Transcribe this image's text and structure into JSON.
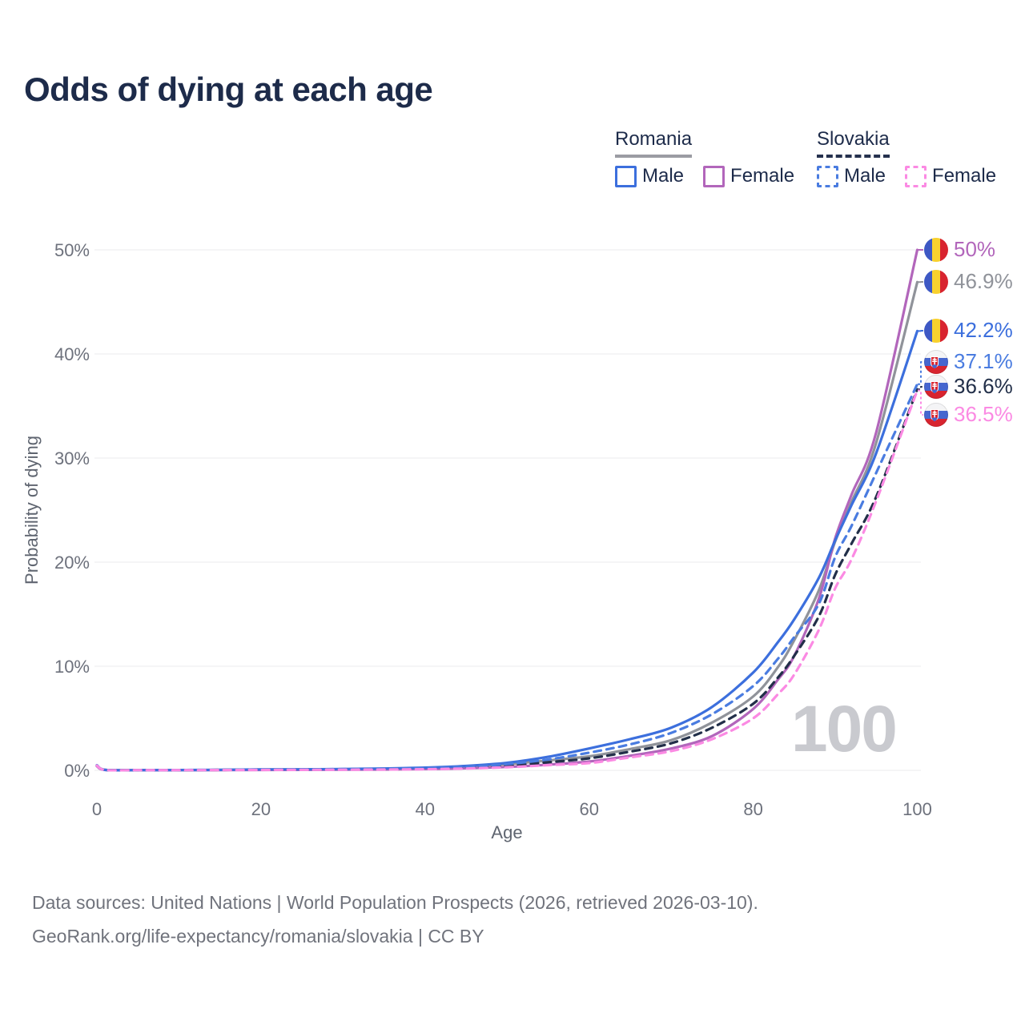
{
  "header": {
    "title": "Odds of dying at each age"
  },
  "legend": {
    "groups": [
      {
        "country": "Romania",
        "line_style": "solid",
        "underline_color": "#9b9ca3",
        "items": [
          {
            "label": "Male",
            "color": "#3c6fdd",
            "dashed": false
          },
          {
            "label": "Female",
            "color": "#b266bb",
            "dashed": false
          }
        ]
      },
      {
        "country": "Slovakia",
        "line_style": "dashed",
        "underline_color": "#25314e",
        "items": [
          {
            "label": "Male",
            "color": "#4a7ce0",
            "dashed": true
          },
          {
            "label": "Female",
            "color": "#fb8ae3",
            "dashed": true
          }
        ]
      }
    ]
  },
  "axes": {
    "y": {
      "title": "Probability of dying",
      "ticks": [
        "0%",
        "10%",
        "20%",
        "30%",
        "40%",
        "50%"
      ],
      "tick_values": [
        0,
        10,
        20,
        30,
        40,
        50
      ]
    },
    "x": {
      "title": "Age",
      "ticks": [
        "0",
        "20",
        "40",
        "60",
        "80",
        "100"
      ],
      "tick_values": [
        0,
        20,
        40,
        60,
        80,
        100
      ]
    },
    "max_age_watermark": "100"
  },
  "chart_data": {
    "type": "line",
    "title": "Odds of dying at each age",
    "xlabel": "Age",
    "ylabel": "Probability of dying",
    "x_range": [
      0,
      100
    ],
    "y_range_percent": [
      0,
      50
    ],
    "grid": "horizontal",
    "legend_position": "top-right",
    "ages": [
      0,
      1,
      5,
      10,
      15,
      20,
      25,
      30,
      35,
      40,
      45,
      50,
      55,
      60,
      65,
      70,
      75,
      80,
      83,
      85,
      88,
      90,
      92,
      95,
      100
    ],
    "series": [
      {
        "id": "romania-female",
        "country": "Romania",
        "sex": "Female",
        "color": "#b266bb",
        "dash": "solid",
        "flag": "ro",
        "end_label": "50%",
        "end_value": 50.0,
        "label_py": 312,
        "values": [
          0.4,
          0.04,
          0.02,
          0.02,
          0.03,
          0.04,
          0.05,
          0.06,
          0.08,
          0.12,
          0.2,
          0.33,
          0.55,
          0.85,
          1.4,
          2.1,
          3.3,
          5.9,
          8.7,
          11.0,
          16.5,
          22.3,
          26.5,
          32.5,
          50.0
        ]
      },
      {
        "id": "romania-both",
        "country": "Romania",
        "sex": "Both sexes",
        "color": "#90939a",
        "dash": "solid",
        "flag": "ro",
        "end_label": "46.9%",
        "end_value": 46.9,
        "label_py": 352,
        "values": [
          0.42,
          0.045,
          0.02,
          0.025,
          0.04,
          0.08,
          0.09,
          0.11,
          0.15,
          0.22,
          0.36,
          0.6,
          0.95,
          1.35,
          2.05,
          2.9,
          4.6,
          7.1,
          9.9,
          12.5,
          17.3,
          22.0,
          25.8,
          31.5,
          46.9
        ]
      },
      {
        "id": "romania-male",
        "country": "Romania",
        "sex": "Male",
        "color": "#3c6fdd",
        "dash": "solid",
        "flag": "ro",
        "end_label": "42.2%",
        "end_value": 42.2,
        "label_py": 413,
        "values": [
          0.45,
          0.05,
          0.02,
          0.03,
          0.05,
          0.09,
          0.1,
          0.13,
          0.18,
          0.26,
          0.42,
          0.72,
          1.3,
          2.1,
          3.0,
          4.1,
          6.1,
          9.4,
          12.3,
          14.5,
          18.5,
          22.1,
          25.5,
          30.5,
          42.2
        ]
      },
      {
        "id": "slovakia-male",
        "country": "Slovakia",
        "sex": "Male",
        "color": "#4a7ce0",
        "dash": "dashed",
        "flag": "sk",
        "end_label": "37.1%",
        "end_value": 37.1,
        "label_py": 452,
        "values": [
          0.5,
          0.05,
          0.02,
          0.03,
          0.05,
          0.08,
          0.09,
          0.12,
          0.16,
          0.22,
          0.35,
          0.6,
          1.05,
          1.7,
          2.5,
          3.6,
          5.4,
          8.1,
          10.7,
          12.8,
          16.0,
          20.5,
          23.5,
          28.6,
          37.1
        ]
      },
      {
        "id": "slovakia-both",
        "country": "Slovakia",
        "sex": "Both sexes",
        "color": "#222f49",
        "dash": "dashed",
        "flag": "sk",
        "end_label": "36.6%",
        "end_value": 36.6,
        "label_py": 483,
        "values": [
          0.48,
          0.045,
          0.02,
          0.025,
          0.04,
          0.06,
          0.07,
          0.09,
          0.12,
          0.17,
          0.27,
          0.45,
          0.78,
          1.15,
          1.8,
          2.6,
          4.1,
          6.4,
          8.9,
          11.0,
          14.8,
          18.8,
          21.8,
          26.3,
          36.6
        ]
      },
      {
        "id": "slovakia-female",
        "country": "Slovakia",
        "sex": "Female",
        "color": "#fb8ae3",
        "dash": "dashed",
        "flag": "sk",
        "end_label": "36.5%",
        "end_value": 36.5,
        "label_py": 518,
        "values": [
          0.45,
          0.04,
          0.02,
          0.02,
          0.03,
          0.04,
          0.05,
          0.06,
          0.08,
          0.11,
          0.18,
          0.3,
          0.5,
          0.7,
          1.25,
          1.85,
          3.0,
          5.0,
          7.3,
          9.2,
          13.5,
          17.5,
          20.3,
          25.9,
          36.5
        ]
      }
    ],
    "flag_colors": {
      "romania": [
        "#3d58c4",
        "#f8d12e",
        "#d8242f"
      ],
      "slovakia": [
        "#f4f4f6",
        "#4666cf",
        "#d8242f"
      ]
    }
  },
  "footer": {
    "line1": "Data sources: United Nations | World Population Prospects (2026, retrieved 2026-03-10).",
    "line2": "GeoRank.org/life-expectancy/romania/slovakia | CC BY"
  }
}
